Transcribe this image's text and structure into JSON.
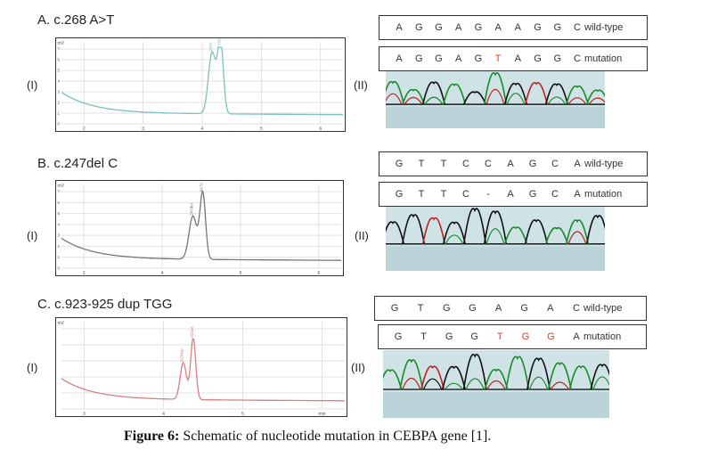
{
  "panels": [
    {
      "id": "A",
      "title": "A. c.268 A>T",
      "label_i": "(I)",
      "label_ii": "(II)",
      "plot": {
        "y_label": "mV",
        "y_ticks": [
          "7",
          "6",
          "5",
          "4",
          "3",
          "2",
          "1",
          "0"
        ],
        "x_ticks": [
          "2",
          "3",
          "4",
          "5",
          "6"
        ],
        "peak_labels": [
          "268T",
          "268A"
        ],
        "color": "#7fbfbf"
      },
      "wildtype": {
        "bases": [
          "A",
          "G",
          "G",
          "A",
          "G",
          "A",
          "A",
          "G",
          "G",
          "C"
        ],
        "tag": "wild-type"
      },
      "mutation": {
        "bases": [
          "A",
          "G",
          "G",
          "A",
          "G",
          "T",
          "A",
          "G",
          "G",
          "C"
        ],
        "tag": "mutation",
        "mutated_index": [
          5
        ]
      }
    },
    {
      "id": "B",
      "title": "B. c.247del C",
      "label_i": "(I)",
      "label_ii": "(II)",
      "plot": {
        "y_label": "mV",
        "y_ticks": [
          "7",
          "6",
          "5",
          "4",
          "3",
          "2",
          "1",
          "0"
        ],
        "x_ticks": [
          "3",
          "4",
          "5",
          "6"
        ],
        "peak_labels": [
          "247del",
          "247C"
        ],
        "color": "#777777"
      },
      "wildtype": {
        "bases": [
          "G",
          "T",
          "T",
          "C",
          "C",
          "A",
          "G",
          "C",
          "A"
        ],
        "tag": "wild-type"
      },
      "mutation": {
        "bases": [
          "G",
          "T",
          "T",
          "C",
          "-",
          "A",
          "G",
          "C",
          "A"
        ],
        "tag": "mutation",
        "mutated_index": []
      }
    },
    {
      "id": "C",
      "title": "C. c.923-925 dup TGG",
      "label_i": "(I)",
      "label_ii": "(II)",
      "plot": {
        "y_label": "mV",
        "y_ticks": [],
        "x_ticks": [
          "3",
          "4",
          "5",
          "min"
        ],
        "peak_labels": [
          "923dup",
          "923wt"
        ],
        "color": "#d98080"
      },
      "wildtype": {
        "bases": [
          "G",
          "T",
          "G",
          "G",
          "A",
          "G",
          "A",
          "C"
        ],
        "tag": "wild-type"
      },
      "mutation": {
        "bases": [
          "G",
          "T",
          "G",
          "G",
          "T",
          "G",
          "G",
          "A"
        ],
        "tag": "mutation",
        "mutated_index": [
          4,
          5,
          6
        ]
      }
    }
  ],
  "caption": {
    "label": "Figure 6:",
    "text": " Schematic of nucleotide mutation in CEBPA gene [1]."
  },
  "colors": {
    "mutation_base": "#e04020",
    "axis": "#333333"
  }
}
